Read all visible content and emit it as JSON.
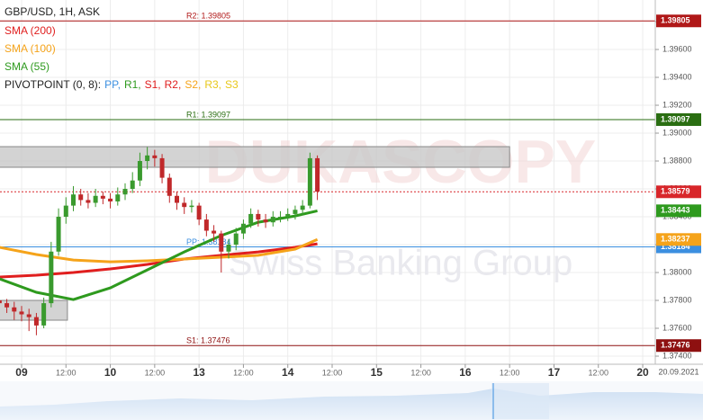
{
  "chart_data": {
    "type": "candlestick",
    "title": "GBP/USD, 1H, ASK",
    "watermark": [
      "DUKASCOPY",
      "Swiss Banking Group"
    ],
    "date_label": "20.09.2021",
    "x": [
      -6,
      -4,
      -2,
      0,
      2,
      4,
      6,
      8,
      10,
      12,
      14,
      16,
      18,
      20,
      22,
      24,
      26,
      28,
      30,
      32,
      34,
      36,
      38,
      40,
      42,
      44,
      46,
      48,
      50,
      52,
      54,
      56,
      58,
      60,
      62,
      64,
      66,
      68,
      70,
      72,
      74,
      76,
      78,
      80
    ],
    "candles": [
      [
        1.378,
        1.3784,
        1.3774,
        1.3778
      ],
      [
        1.3778,
        1.3781,
        1.3771,
        1.3775
      ],
      [
        1.3775,
        1.3779,
        1.3766,
        1.3772
      ],
      [
        1.3772,
        1.3776,
        1.3765,
        1.377
      ],
      [
        1.377,
        1.3774,
        1.3758,
        1.3768
      ],
      [
        1.3768,
        1.3771,
        1.3755,
        1.3762
      ],
      [
        1.3762,
        1.3782,
        1.376,
        1.3778
      ],
      [
        1.3778,
        1.3822,
        1.3775,
        1.3815
      ],
      [
        1.3815,
        1.3846,
        1.3812,
        1.384
      ],
      [
        1.384,
        1.3854,
        1.3835,
        1.3848
      ],
      [
        1.3848,
        1.3862,
        1.3844,
        1.3856
      ],
      [
        1.3856,
        1.386,
        1.3848,
        1.3852
      ],
      [
        1.3852,
        1.3857,
        1.3846,
        1.385
      ],
      [
        1.385,
        1.386,
        1.3847,
        1.3855
      ],
      [
        1.3855,
        1.3858,
        1.3849,
        1.3853
      ],
      [
        1.3853,
        1.3857,
        1.3846,
        1.3851
      ],
      [
        1.3851,
        1.3861,
        1.3848,
        1.3856
      ],
      [
        1.3856,
        1.3864,
        1.3852,
        1.386
      ],
      [
        1.386,
        1.3872,
        1.3857,
        1.3866
      ],
      [
        1.3866,
        1.3886,
        1.3862,
        1.388
      ],
      [
        1.388,
        1.389,
        1.3874,
        1.3884
      ],
      [
        1.3884,
        1.3888,
        1.3876,
        1.3882
      ],
      [
        1.3882,
        1.3885,
        1.3864,
        1.3868
      ],
      [
        1.3868,
        1.3871,
        1.385,
        1.3855
      ],
      [
        1.3855,
        1.3858,
        1.3845,
        1.385
      ],
      [
        1.385,
        1.3854,
        1.3842,
        1.3847
      ],
      [
        1.3847,
        1.3852,
        1.3843,
        1.3848
      ],
      [
        1.3848,
        1.385,
        1.3834,
        1.3838
      ],
      [
        1.3838,
        1.3842,
        1.3826,
        1.383
      ],
      [
        1.383,
        1.3834,
        1.3822,
        1.3828
      ],
      [
        1.3828,
        1.383,
        1.38,
        1.3815
      ],
      [
        1.3815,
        1.3824,
        1.381,
        1.382
      ],
      [
        1.382,
        1.3832,
        1.3816,
        1.3828
      ],
      [
        1.3828,
        1.3838,
        1.3824,
        1.3835
      ],
      [
        1.3835,
        1.3846,
        1.3832,
        1.3842
      ],
      [
        1.3842,
        1.3845,
        1.3833,
        1.3838
      ],
      [
        1.3838,
        1.3842,
        1.3832,
        1.3836
      ],
      [
        1.3836,
        1.3844,
        1.3833,
        1.384
      ],
      [
        1.384,
        1.3844,
        1.3836,
        1.384
      ],
      [
        1.384,
        1.3846,
        1.3837,
        1.3842
      ],
      [
        1.3842,
        1.3848,
        1.3838,
        1.3845
      ],
      [
        1.3845,
        1.3852,
        1.3841,
        1.3848
      ],
      [
        1.3848,
        1.3886,
        1.3846,
        1.3882
      ],
      [
        1.3882,
        1.3884,
        1.3852,
        1.3858
      ]
    ],
    "up_color": "#3a9a2e",
    "down_color": "#c0282a",
    "series": [
      {
        "name": "SMA (200)",
        "color": "#e01e1e",
        "x": [
          -6,
          4,
          14,
          24,
          34,
          44,
          54,
          64,
          74,
          80
        ],
        "values": [
          1.37968,
          1.37981,
          1.38,
          1.38026,
          1.38058,
          1.38097,
          1.38123,
          1.38148,
          1.38181,
          1.38206
        ]
      },
      {
        "name": "SMA (100)",
        "color": "#f5a31a",
        "x": [
          -6,
          4,
          14,
          24,
          34,
          44,
          54,
          64,
          74,
          80
        ],
        "values": [
          1.38181,
          1.38129,
          1.3809,
          1.38077,
          1.38084,
          1.38097,
          1.3811,
          1.38123,
          1.38168,
          1.38237
        ],
        "tag": true
      },
      {
        "name": "SMA (55)",
        "color": "#2e9a1e",
        "x": [
          -6,
          4,
          14,
          24,
          34,
          44,
          54,
          64,
          74,
          80
        ],
        "values": [
          1.37955,
          1.37858,
          1.37806,
          1.3789,
          1.38019,
          1.38148,
          1.38265,
          1.38361,
          1.38406,
          1.38443
        ],
        "tag": true
      }
    ],
    "pivot_title": "PIVOTPOINT (0, 8):",
    "pivot_items": [
      {
        "name": "PP,",
        "color": "#3b8fe0"
      },
      {
        "name": "R1,",
        "color": "#2e9a1e"
      },
      {
        "name": "S1,",
        "color": "#e01e1e"
      },
      {
        "name": "R2,",
        "color": "#e01e1e"
      },
      {
        "name": "S2,",
        "color": "#f5a31a"
      },
      {
        "name": "R3,",
        "color": "#e8c81a"
      },
      {
        "name": "S3",
        "color": "#e8c81a"
      }
    ],
    "levels": [
      {
        "label": "R2: 1.39805",
        "value": 1.39805,
        "color": "#b01818"
      },
      {
        "label": "R1: 1.39097",
        "value": 1.39097,
        "color": "#2a6e12"
      },
      {
        "label": "PP: 1.38184",
        "value": 1.38184,
        "color": "#3b8fe0"
      },
      {
        "label": "S1: 1.37476",
        "value": 1.37476,
        "color": "#8e1010"
      }
    ],
    "current_price": 1.38579,
    "current_color": "#d8262a",
    "zones": [
      {
        "x": [
          -6,
          132
        ],
        "low": 1.38755,
        "high": 1.38903
      },
      {
        "x": [
          -6,
          12.4
        ],
        "low": 1.37658,
        "high": 1.378
      }
    ],
    "xlim": [
      -5.84,
      171.4
    ],
    "ylim": [
      1.37342,
      1.39955
    ],
    "xticks": [
      {
        "value": 0,
        "label": "09"
      },
      {
        "value": 12,
        "label": "12:00"
      },
      {
        "value": 24,
        "label": "10"
      },
      {
        "value": 36,
        "label": "12:00"
      },
      {
        "value": 48,
        "label": "13"
      },
      {
        "value": 60,
        "label": "12:00"
      },
      {
        "value": 72,
        "label": "14"
      },
      {
        "value": 84,
        "label": "12:00"
      },
      {
        "value": 96,
        "label": "15"
      },
      {
        "value": 108,
        "label": "12:00"
      },
      {
        "value": 120,
        "label": "16"
      },
      {
        "value": 132,
        "label": "12:00"
      },
      {
        "value": 144,
        "label": "17"
      },
      {
        "value": 156,
        "label": "12:00"
      },
      {
        "value": 168,
        "label": "20"
      }
    ],
    "yticks": [
      {
        "value": 1.374,
        "label": "1.37400"
      },
      {
        "value": 1.376,
        "label": "1.37600"
      },
      {
        "value": 1.378,
        "label": "1.37800"
      },
      {
        "value": 1.38,
        "label": "1.38000"
      },
      {
        "value": 1.382,
        "label": "1.38200"
      },
      {
        "value": 1.384,
        "label": "1.38400"
      },
      {
        "value": 1.386,
        "label": "1.38600"
      },
      {
        "value": 1.388,
        "label": "1.38800"
      },
      {
        "value": 1.39,
        "label": "1.39000"
      },
      {
        "value": 1.392,
        "label": "1.39200"
      },
      {
        "value": 1.394,
        "label": "1.39400"
      },
      {
        "value": 1.396,
        "label": "1.39600"
      },
      {
        "value": 1.398,
        "label": "1.39800"
      }
    ],
    "grid": true
  }
}
